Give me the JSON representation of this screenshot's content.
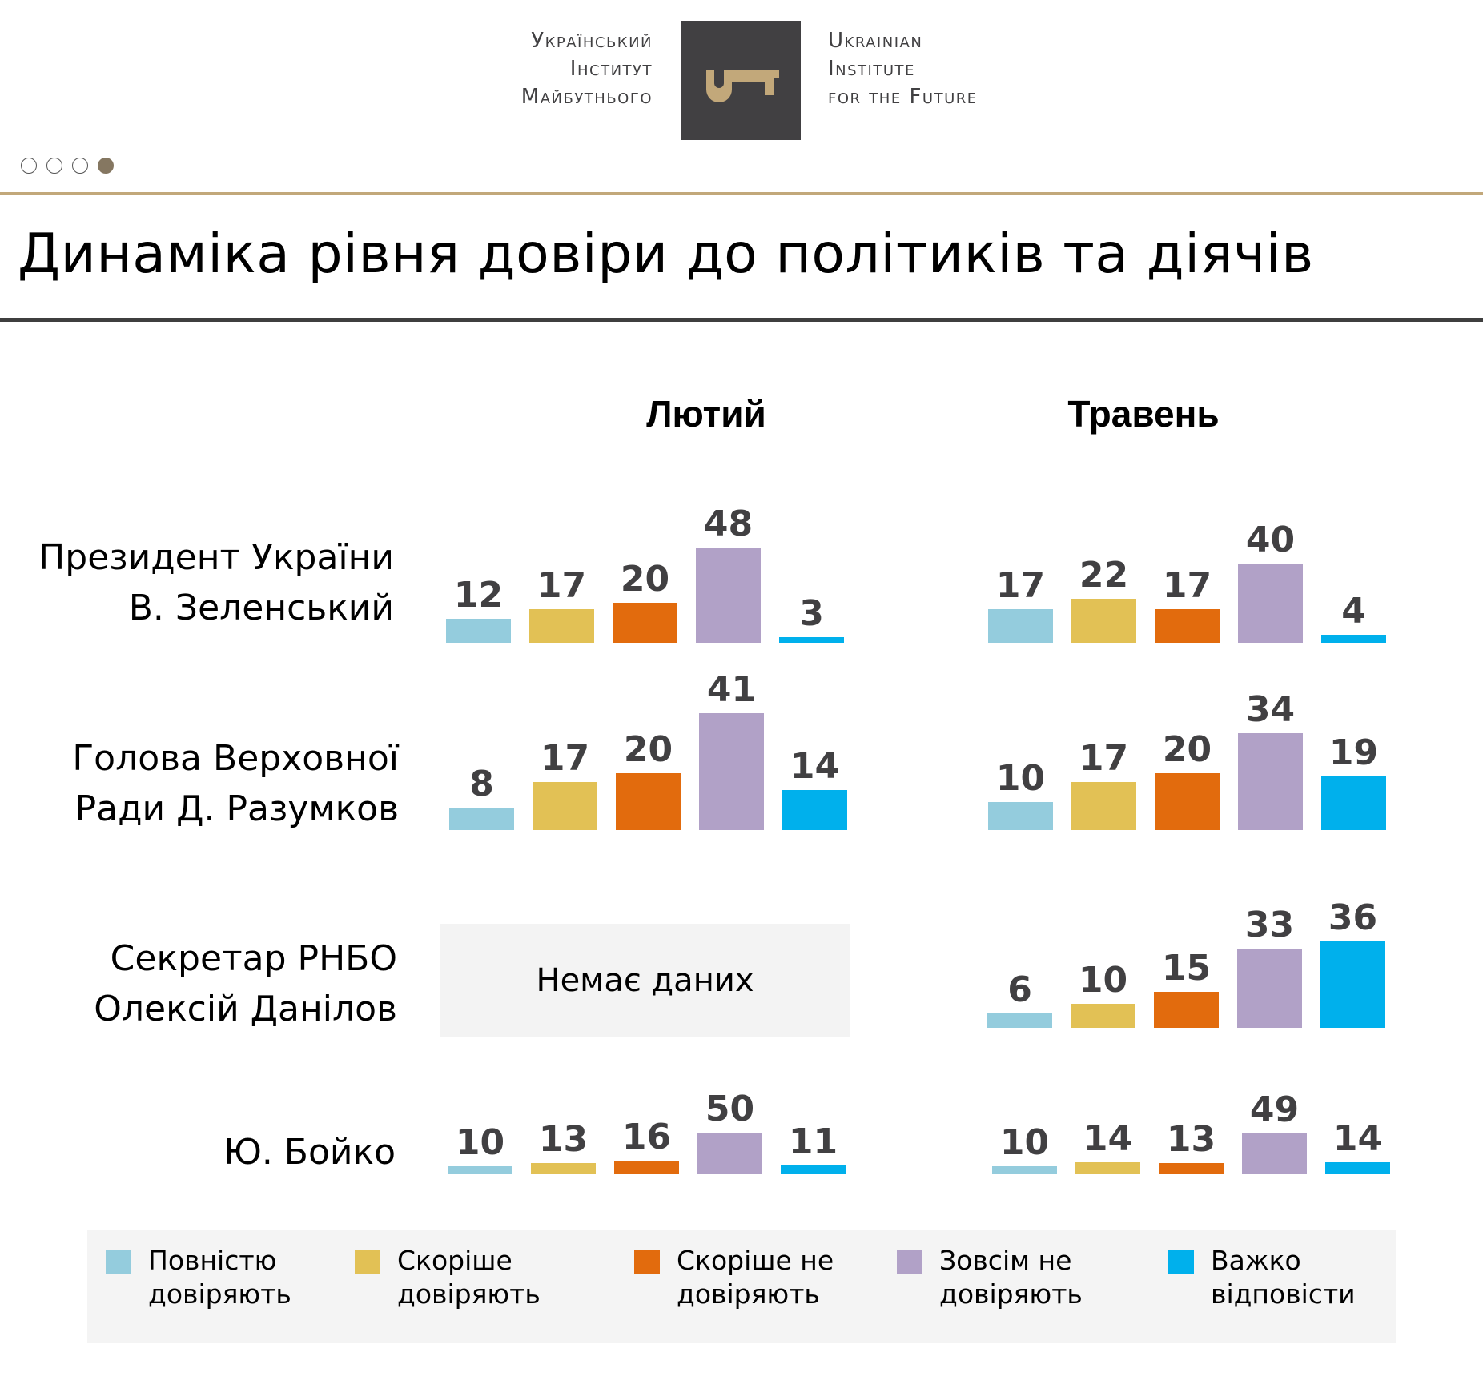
{
  "header": {
    "logo_left": [
      "Український",
      "Інститут",
      "Майбутнього"
    ],
    "logo_right": [
      "Ukrainian",
      "Institute",
      "for the Future"
    ],
    "logo_icon": "key-icon",
    "slide_dots": {
      "total": 4,
      "active_index": 3
    }
  },
  "title": "Динаміка рівня довіри до політиків та діячів",
  "no_data_label": "Немає даних",
  "colors": {
    "fully_trust": "#94ccdd",
    "rather_trust": "#e2c155",
    "rather_not_trust": "#e26b0d",
    "not_trust_at_all": "#b1a1c7",
    "hard_to_say": "#00b0ec",
    "brand_gold": "#c2a87a",
    "logo_dark": "#414042"
  },
  "chart_data": {
    "type": "bar",
    "title": "Динаміка рівня довіри до політиків та діячів",
    "periods": [
      "Лютий",
      "Травень"
    ],
    "categories": [
      "Повністю довіряють",
      "Скоріше довіряють",
      "Скоріше не довіряють",
      "Зовсім не довіряють",
      "Важко відповісти"
    ],
    "legend": [
      {
        "label": "Повністю\nдовіряють",
        "key": "fully_trust"
      },
      {
        "label": "Скоріше\nдовіряють",
        "key": "rather_trust"
      },
      {
        "label": "Скоріше не\nдовіряють",
        "key": "rather_not_trust"
      },
      {
        "label": "Зовсім не\nдовіряють",
        "key": "not_trust_at_all"
      },
      {
        "label": "Важко\nвідповісти",
        "key": "hard_to_say"
      }
    ],
    "legend_position": "bottom",
    "unit": "%",
    "rows": [
      {
        "label": [
          "Президент України",
          "В. Зеленський"
        ],
        "series": [
          {
            "name": "Лютий",
            "values": [
              12,
              17,
              20,
              48,
              3
            ]
          },
          {
            "name": "Травень",
            "values": [
              17,
              22,
              17,
              40,
              4
            ]
          }
        ]
      },
      {
        "label": [
          "Голова Верховної",
          "Ради Д. Разумков"
        ],
        "series": [
          {
            "name": "Лютий",
            "values": [
              8,
              17,
              20,
              41,
              14
            ]
          },
          {
            "name": "Травень",
            "values": [
              10,
              17,
              20,
              34,
              19
            ]
          }
        ]
      },
      {
        "label": [
          "Секретар РНБО",
          "Олексій Данілов"
        ],
        "series": [
          {
            "name": "Лютий",
            "values": null
          },
          {
            "name": "Травень",
            "values": [
              6,
              10,
              15,
              33,
              36
            ]
          }
        ]
      },
      {
        "label": [
          "Ю. Бойко"
        ],
        "series": [
          {
            "name": "Лютий",
            "values": [
              10,
              13,
              16,
              50,
              11
            ]
          },
          {
            "name": "Травень",
            "values": [
              10,
              14,
              13,
              49,
              14
            ]
          }
        ]
      }
    ]
  }
}
